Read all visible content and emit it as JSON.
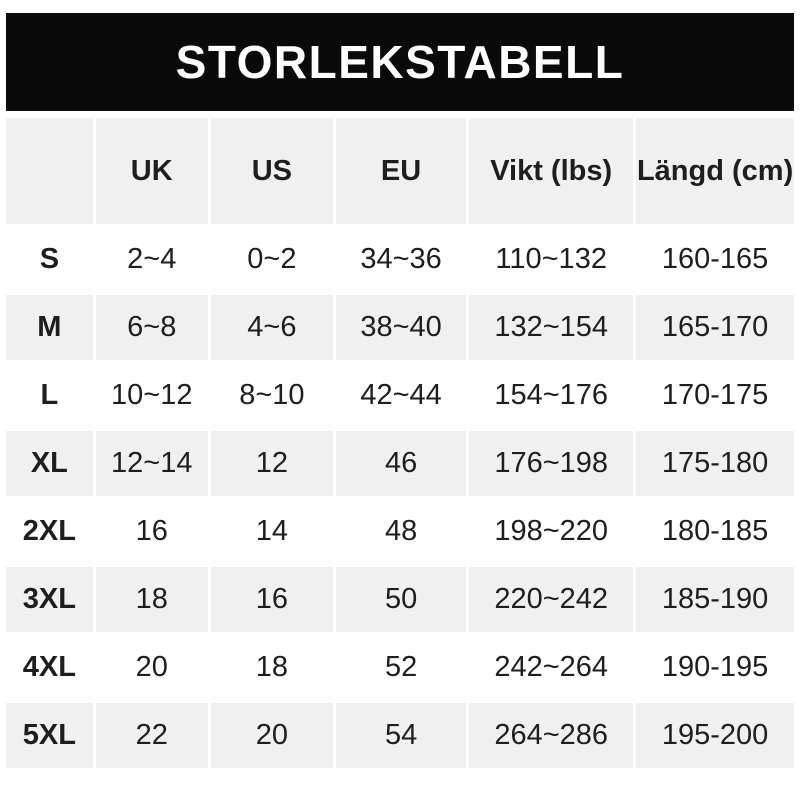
{
  "title": "STORLEKSTABELL",
  "colors": {
    "banner_bg": "#0a0a0a",
    "banner_text": "#ffffff",
    "row_stripe_bg": "#f0f0f0",
    "row_white_bg": "#ffffff",
    "text": "#1e1e1e",
    "page_bg": "#ffffff"
  },
  "chart_data": {
    "type": "table",
    "title": "STORLEKSTABELL",
    "columns": [
      "",
      "UK",
      "US",
      "EU",
      "Vikt (lbs)",
      "Längd (cm)"
    ],
    "rows": [
      [
        "S",
        "2~4",
        "0~2",
        "34~36",
        "110~132",
        "160-165"
      ],
      [
        "M",
        "6~8",
        "4~6",
        "38~40",
        "132~154",
        "165-170"
      ],
      [
        "L",
        "10~12",
        "8~10",
        "42~44",
        "154~176",
        "170-175"
      ],
      [
        "XL",
        "12~14",
        "12",
        "46",
        "176~198",
        "175-180"
      ],
      [
        "2XL",
        "16",
        "14",
        "48",
        "198~220",
        "180-185"
      ],
      [
        "3XL",
        "18",
        "16",
        "50",
        "220~242",
        "185-190"
      ],
      [
        "4XL",
        "20",
        "18",
        "52",
        "242~264",
        "190-195"
      ],
      [
        "5XL",
        "22",
        "20",
        "54",
        "264~286",
        "195-200"
      ]
    ],
    "layout": {
      "legend": "none",
      "grid": "white gaps between striped cells",
      "row_striping": "header gray, then alternating white/gray starting white"
    }
  }
}
